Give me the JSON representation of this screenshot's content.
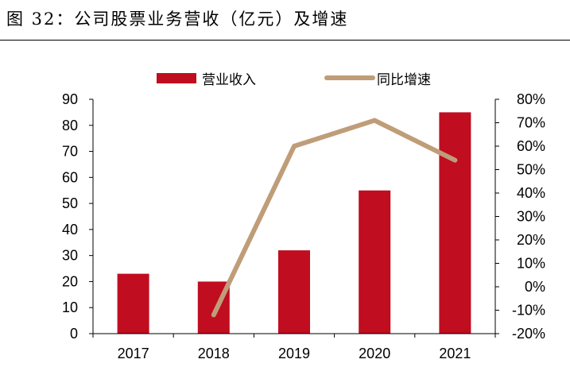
{
  "figure": {
    "title": "图 32：公司股票业务营收（亿元）及增速"
  },
  "colors": {
    "bar": "#c00d20",
    "line": "#bf9d78",
    "axis": "#000000"
  },
  "chart_data": {
    "type": "bar",
    "title": "",
    "categories": [
      "2017",
      "2018",
      "2019",
      "2020",
      "2021"
    ],
    "series": [
      {
        "name": "营业收入",
        "type": "bar",
        "axis": "left",
        "values": [
          23,
          20,
          32,
          55,
          85
        ]
      },
      {
        "name": "同比增速",
        "type": "line",
        "axis": "right",
        "values": [
          null,
          -0.12,
          0.6,
          0.71,
          0.54
        ]
      }
    ],
    "y_left": {
      "min": 0,
      "max": 90,
      "ticks": [
        "0",
        "10",
        "20",
        "30",
        "40",
        "50",
        "60",
        "70",
        "80",
        "90"
      ]
    },
    "y_right": {
      "min": -0.2,
      "max": 0.8,
      "ticks": [
        "-20%",
        "-10%",
        "0%",
        "10%",
        "20%",
        "30%",
        "40%",
        "50%",
        "60%",
        "70%",
        "80%"
      ]
    },
    "legend_position": "top-center",
    "grid": false
  }
}
